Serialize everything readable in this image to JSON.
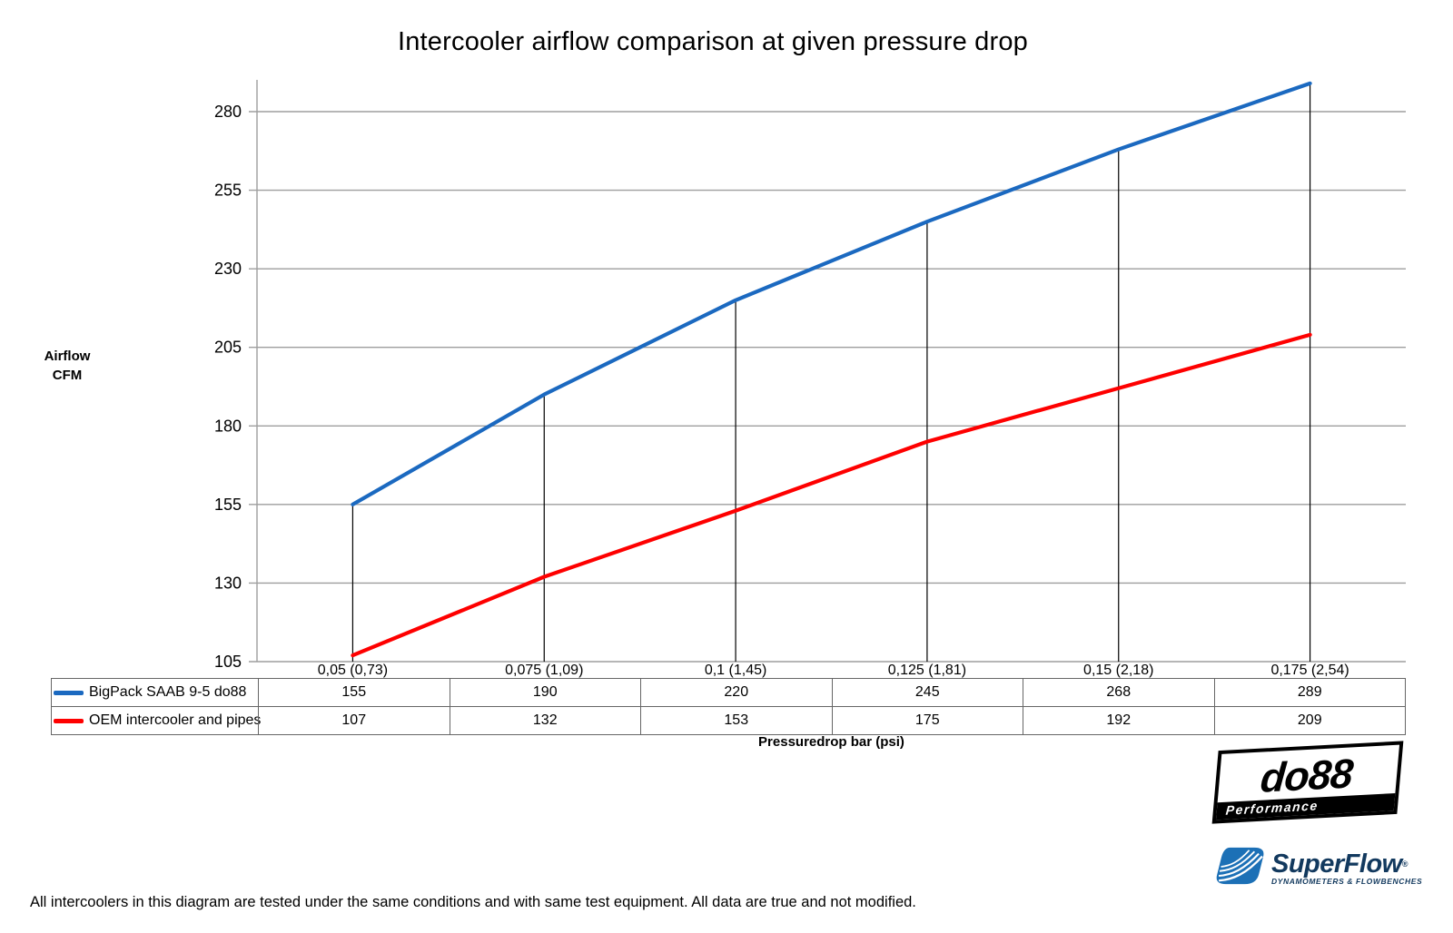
{
  "chart_data": {
    "type": "line",
    "title": "Intercooler airflow comparison at given pressure drop",
    "categories": [
      "0,05 (0,73)",
      "0,075 (1,09)",
      "0,1 (1,45)",
      "0,125 (1,81)",
      "0,15 (2,18)",
      "0,175 (2,54)"
    ],
    "series": [
      {
        "name": "BigPack SAAB 9-5 do88",
        "color": "#1b69c0",
        "values": [
          155,
          190,
          220,
          245,
          268,
          289
        ]
      },
      {
        "name": "OEM intercooler and pipes",
        "color": "#fe0000",
        "values": [
          107,
          132,
          153,
          175,
          192,
          209
        ]
      }
    ],
    "y_ticks": [
      105,
      130,
      155,
      180,
      205,
      230,
      255,
      280
    ],
    "ylim": [
      105,
      292
    ],
    "ylabel_lines": [
      "Airflow",
      "CFM"
    ],
    "xlabel": "Pressuredrop bar (psi)",
    "grid": "horizontal gray gridlines, black vertical drop lines from first series points to x-axis",
    "legend_position": "table rows left of value table below x-axis"
  },
  "colors": {
    "grid": "#9e9e9e",
    "drop_line": "#000000",
    "table_border": "#666666",
    "logo_navy": "#12395e",
    "swoosh_blue": "#1c70b6"
  },
  "logos": {
    "do88": {
      "text": "do88",
      "subtext": "Performance"
    },
    "superflow": {
      "text": "SuperFlow",
      "mark": "®",
      "subtext": "DYNAMOMETERS & FLOWBENCHES"
    }
  },
  "footer": {
    "disclaimer": "All intercoolers in this diagram are tested under the same conditions and with same test equipment. All data are true and not modified."
  }
}
